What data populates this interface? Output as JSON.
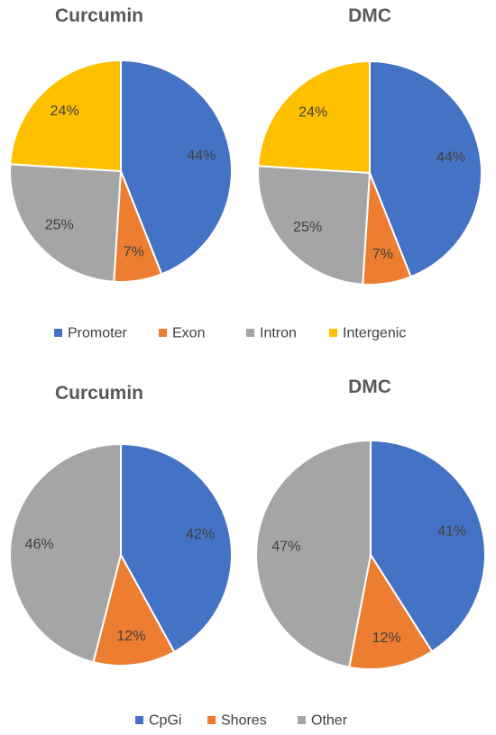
{
  "chart_data": [
    {
      "type": "pie",
      "title": "Curcumin",
      "categories": [
        "Promoter",
        "Exon",
        "Intron",
        "Intergenic"
      ],
      "values": [
        44,
        7,
        25,
        24
      ],
      "labels": [
        "44%",
        "7%",
        "25%",
        "24%"
      ],
      "colors": [
        "#4472C4",
        "#ED7D31",
        "#A5A5A5",
        "#FFC000"
      ]
    },
    {
      "type": "pie",
      "title": "DMC",
      "categories": [
        "Promoter",
        "Exon",
        "Intron",
        "Intergenic"
      ],
      "values": [
        44,
        7,
        25,
        24
      ],
      "labels": [
        "44%",
        "7%",
        "25%",
        "24%"
      ],
      "colors": [
        "#4472C4",
        "#ED7D31",
        "#A5A5A5",
        "#FFC000"
      ]
    },
    {
      "type": "pie",
      "title": "Curcumin",
      "categories": [
        "CpGi",
        "Shores",
        "Other"
      ],
      "values": [
        42,
        12,
        46
      ],
      "labels": [
        "42%",
        "12%",
        "46%"
      ],
      "colors": [
        "#4472C4",
        "#ED7D31",
        "#A5A5A5"
      ]
    },
    {
      "type": "pie",
      "title": "DMC",
      "categories": [
        "CpGi",
        "Shores",
        "Other"
      ],
      "values": [
        41,
        12,
        47
      ],
      "labels": [
        "41%",
        "12%",
        "47%"
      ],
      "colors": [
        "#4472C4",
        "#ED7D31",
        "#A5A5A5"
      ]
    }
  ],
  "legends": [
    {
      "position": "bottom",
      "entries": [
        "Promoter",
        "Exon",
        "Intron",
        "Intergenic"
      ],
      "colors": [
        "#4472C4",
        "#ED7D31",
        "#A5A5A5",
        "#FFC000"
      ]
    },
    {
      "position": "bottom",
      "entries": [
        "CpGi",
        "Shores",
        "Other"
      ],
      "colors": [
        "#4472C4",
        "#ED7D31",
        "#A5A5A5"
      ]
    }
  ]
}
